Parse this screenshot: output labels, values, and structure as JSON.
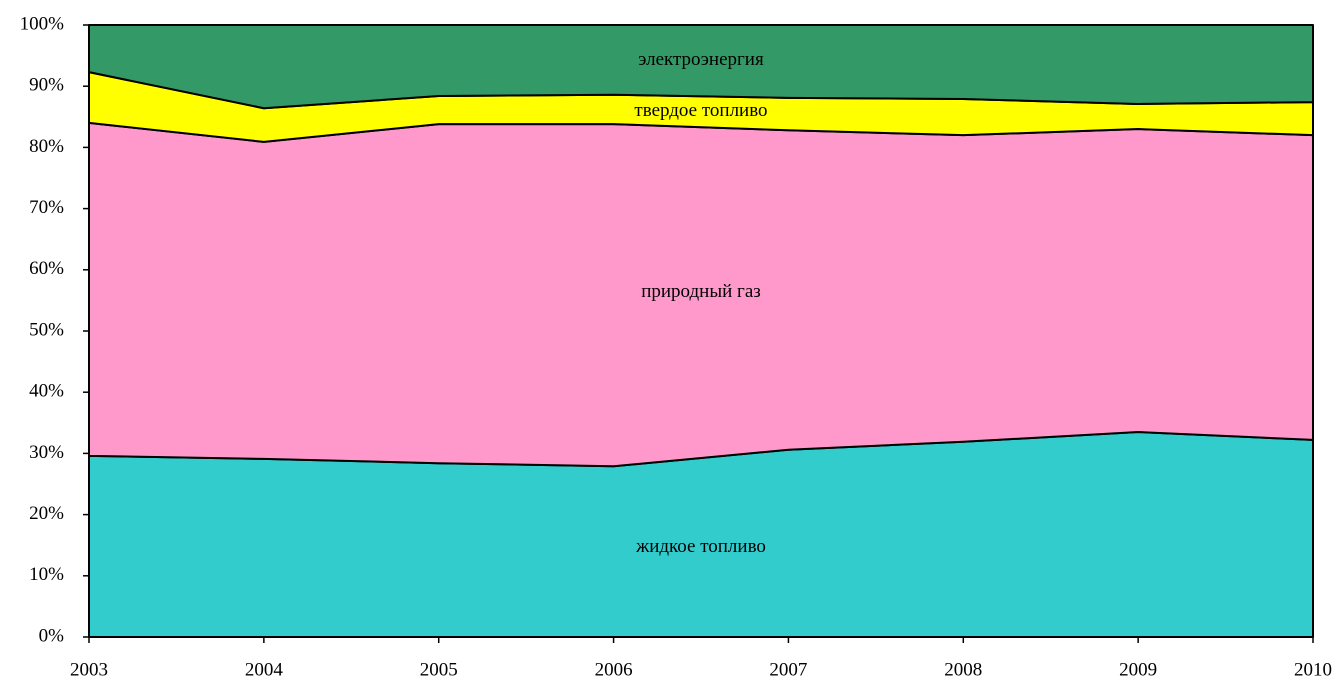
{
  "chart_data": {
    "type": "stacked_area",
    "x": [
      2003,
      2004,
      2005,
      2006,
      2007,
      2008,
      2009,
      2010
    ],
    "xlim": [
      2003,
      2010
    ],
    "xticks": [
      2003,
      2004,
      2005,
      2006,
      2007,
      2008,
      2009,
      2010
    ],
    "ylim": [
      0,
      100
    ],
    "yticks": [
      {
        "value": 0,
        "label": "0%"
      },
      {
        "value": 10,
        "label": "10%"
      },
      {
        "value": 20,
        "label": "20%"
      },
      {
        "value": 30,
        "label": "30%"
      },
      {
        "value": 40,
        "label": "40%"
      },
      {
        "value": 50,
        "label": "50%"
      },
      {
        "value": 60,
        "label": "60%"
      },
      {
        "value": 70,
        "label": "70%"
      },
      {
        "value": 80,
        "label": "80%"
      },
      {
        "value": 90,
        "label": "90%"
      },
      {
        "value": 100,
        "label": "100%"
      }
    ],
    "series": [
      {
        "name": "жидкое топливо",
        "color": "#33cccc",
        "values": [
          29.6,
          29.1,
          28.4,
          27.9,
          30.6,
          31.9,
          33.5,
          32.2
        ]
      },
      {
        "name": "природный газ",
        "color": "#ff99cc",
        "values": [
          54.4,
          51.8,
          55.4,
          55.9,
          52.2,
          50.1,
          49.5,
          49.8
        ]
      },
      {
        "name": "твердое топливо",
        "color": "#ffff00",
        "values": [
          8.3,
          5.5,
          4.6,
          4.8,
          5.3,
          5.9,
          4.1,
          5.4
        ]
      },
      {
        "name": "электроэнергия",
        "color": "#339966",
        "values": [
          7.7,
          13.6,
          11.6,
          11.4,
          11.9,
          12.1,
          12.9,
          12.6
        ]
      }
    ]
  }
}
